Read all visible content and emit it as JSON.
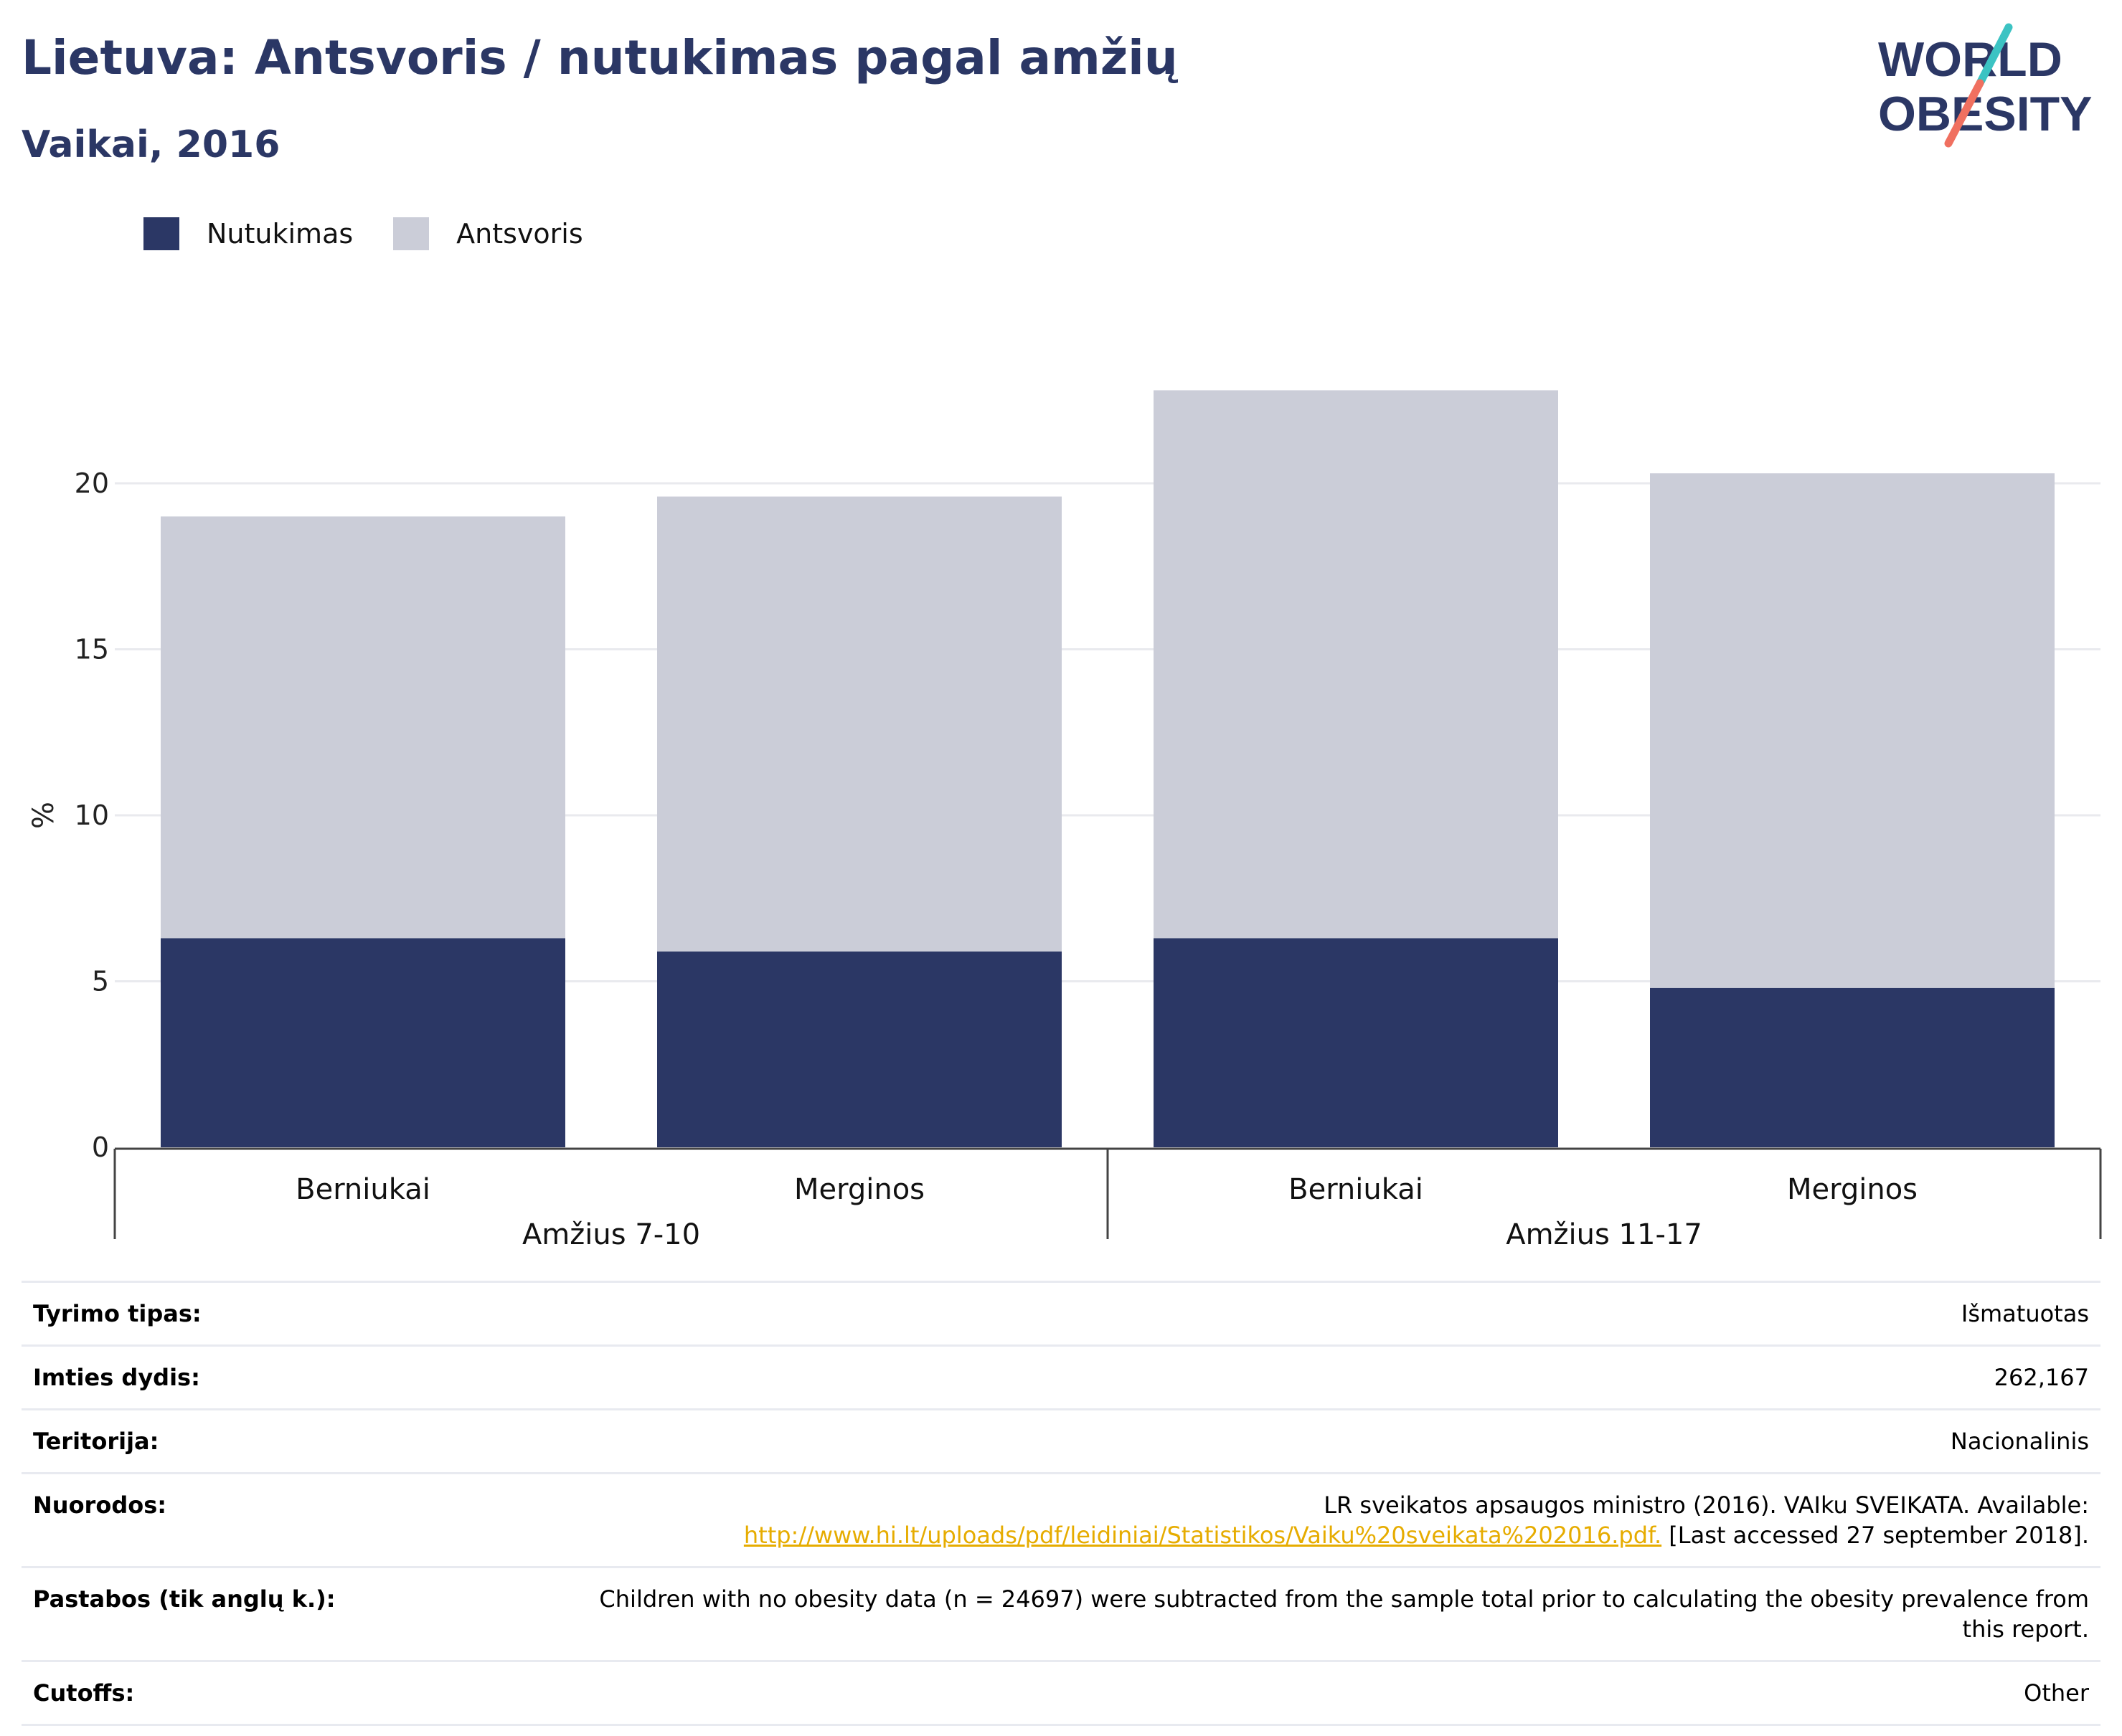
{
  "header": {
    "title": "Lietuva: Antsvoris / nutukimas pagal amžių",
    "subtitle": "Vaikai, 2016"
  },
  "logo": {
    "icon": "world-obesity-logo",
    "line1": "WORLD",
    "line2": "OBESITY",
    "colors": {
      "text": "#2b3765",
      "slash_top": "#3cc3c3",
      "slash_bottom": "#f07060"
    }
  },
  "legend": [
    {
      "label": "Nutukimas",
      "color": "#2b3765"
    },
    {
      "label": "Antsvoris",
      "color": "#cbcdd8"
    }
  ],
  "chart_data": {
    "type": "bar",
    "stacked": true,
    "ylabel": "%",
    "ylim": [
      0,
      23
    ],
    "yticks": [
      0,
      5,
      10,
      15,
      20
    ],
    "grid": true,
    "legend_position": "top-left",
    "categories": [
      "Berniukai",
      "Merginos",
      "Berniukai",
      "Merginos"
    ],
    "groups": [
      {
        "label": "Amžius 7-10",
        "span": [
          0,
          1
        ]
      },
      {
        "label": "Amžius 11-17",
        "span": [
          2,
          3
        ]
      }
    ],
    "series": [
      {
        "name": "Nutukimas",
        "color": "#2b3765",
        "values": [
          6.3,
          5.9,
          6.3,
          4.8
        ]
      },
      {
        "name": "Antsvoris",
        "color": "#cbcdd8",
        "values": [
          12.7,
          13.7,
          16.5,
          15.5
        ]
      }
    ]
  },
  "info": [
    {
      "key": "Tyrimo tipas:",
      "value": "Išmatuotas"
    },
    {
      "key": "Imties dydis:",
      "value": "262,167"
    },
    {
      "key": "Teritorija:",
      "value": "Nacionalinis"
    },
    {
      "key": "Nuorodos:",
      "value_pre": "LR sveikatos apsaugos ministro (2016). VAIku SVEIKATA. Available:",
      "link": "http://www.hi.lt/uploads/pdf/leidiniai/Statistikos/Vaiku%20sveikata%202016.pdf.",
      "value_post": " [Last accessed 27 september 2018]."
    },
    {
      "key": "Pastabos (tik anglų k.):",
      "value": "Children with no obesity data (n = 24697) were subtracted from the sample total prior to calculating the obesity prevalence from this report."
    },
    {
      "key": "Cutoffs:",
      "value": "Other"
    }
  ]
}
